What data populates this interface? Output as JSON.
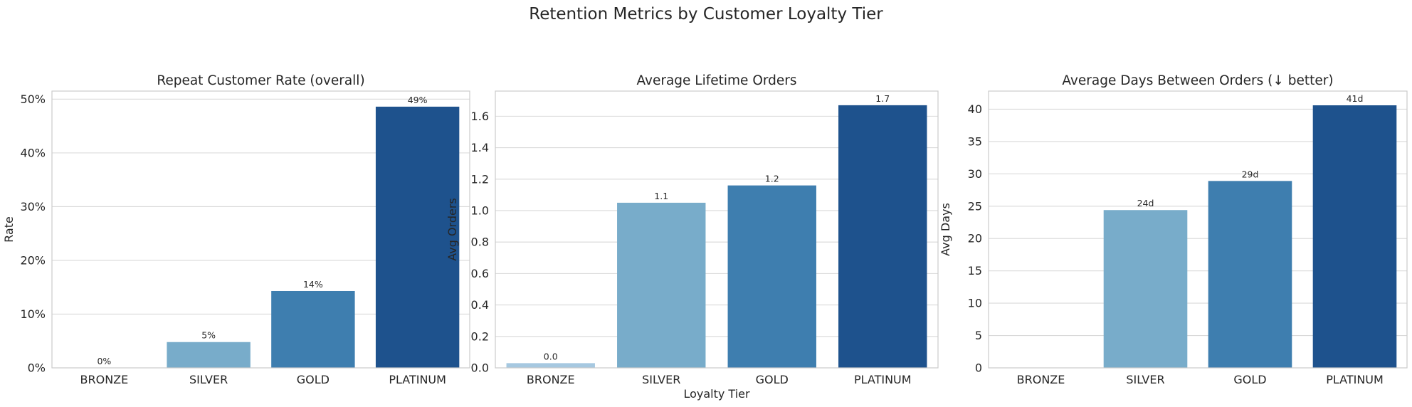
{
  "figure_title": "Retention Metrics by Customer Loyalty Tier",
  "colors": {
    "BRONZE": "#a6c8e0",
    "SILVER": "#78acca",
    "GOLD": "#3e7eaf",
    "PLATINUM": "#1e528d"
  },
  "chart_data": [
    {
      "type": "bar",
      "title": "Repeat Customer Rate (overall)",
      "xlabel": "",
      "ylabel": "Rate",
      "categories": [
        "BRONZE",
        "SILVER",
        "GOLD",
        "PLATINUM"
      ],
      "values": [
        0.0,
        4.8,
        14.3,
        48.6
      ],
      "data_labels": [
        "0%",
        "5%",
        "14%",
        "49%"
      ],
      "yticks": [
        0,
        10,
        20,
        30,
        40,
        50
      ],
      "ytick_labels": [
        "0%",
        "10%",
        "20%",
        "30%",
        "40%",
        "50%"
      ],
      "ylim": [
        0,
        51.5
      ],
      "grid": true
    },
    {
      "type": "bar",
      "title": "Average Lifetime Orders",
      "xlabel": "Loyalty Tier",
      "ylabel": "Avg Orders",
      "categories": [
        "BRONZE",
        "SILVER",
        "GOLD",
        "PLATINUM"
      ],
      "values": [
        0.03,
        1.05,
        1.16,
        1.67
      ],
      "data_labels": [
        "0.0",
        "1.1",
        "1.2",
        "1.7"
      ],
      "yticks": [
        0,
        0.2,
        0.4,
        0.6,
        0.8,
        1.0,
        1.2,
        1.4,
        1.6
      ],
      "ytick_labels": [
        "0.0",
        "0.2",
        "0.4",
        "0.6",
        "0.8",
        "1.0",
        "1.2",
        "1.4",
        "1.6"
      ],
      "ylim": [
        0,
        1.76
      ],
      "grid": true
    },
    {
      "type": "bar",
      "title": "Average Days Between Orders (↓ better)",
      "xlabel": "",
      "ylabel": "Avg Days",
      "categories": [
        "BRONZE",
        "SILVER",
        "GOLD",
        "PLATINUM"
      ],
      "values": [
        0,
        24.4,
        28.9,
        40.6
      ],
      "data_labels": [
        "",
        "24d",
        "29d",
        "41d"
      ],
      "yticks": [
        0,
        5,
        10,
        15,
        20,
        25,
        30,
        35,
        40
      ],
      "ytick_labels": [
        "0",
        "5",
        "10",
        "15",
        "20",
        "25",
        "30",
        "35",
        "40"
      ],
      "ylim": [
        0,
        42.8
      ],
      "grid": true
    }
  ]
}
